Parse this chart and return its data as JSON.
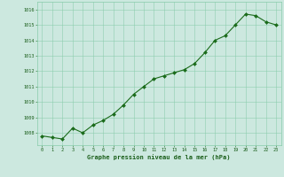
{
  "x": [
    0,
    1,
    2,
    3,
    4,
    5,
    6,
    7,
    8,
    9,
    10,
    11,
    12,
    13,
    14,
    15,
    16,
    17,
    18,
    19,
    20,
    21,
    22,
    23
  ],
  "y": [
    1007.8,
    1007.7,
    1007.6,
    1008.3,
    1008.0,
    1008.5,
    1008.8,
    1009.2,
    1009.8,
    1010.5,
    1011.0,
    1011.5,
    1011.7,
    1011.9,
    1012.1,
    1012.5,
    1013.2,
    1014.0,
    1014.3,
    1015.0,
    1015.7,
    1015.6,
    1015.2,
    1015.0
  ],
  "line_color": "#1a6b1a",
  "marker_color": "#1a6b1a",
  "bg_color": "#cce8df",
  "grid_color": "#88ccaa",
  "xlabel": "Graphe pression niveau de la mer (hPa)",
  "xlabel_color": "#1a5e1a",
  "tick_color": "#1a5e1a",
  "ylabel_ticks": [
    1008,
    1009,
    1010,
    1011,
    1012,
    1013,
    1014,
    1015,
    1016
  ],
  "ylim": [
    1007.2,
    1016.5
  ],
  "xlim": [
    -0.5,
    23.5
  ]
}
